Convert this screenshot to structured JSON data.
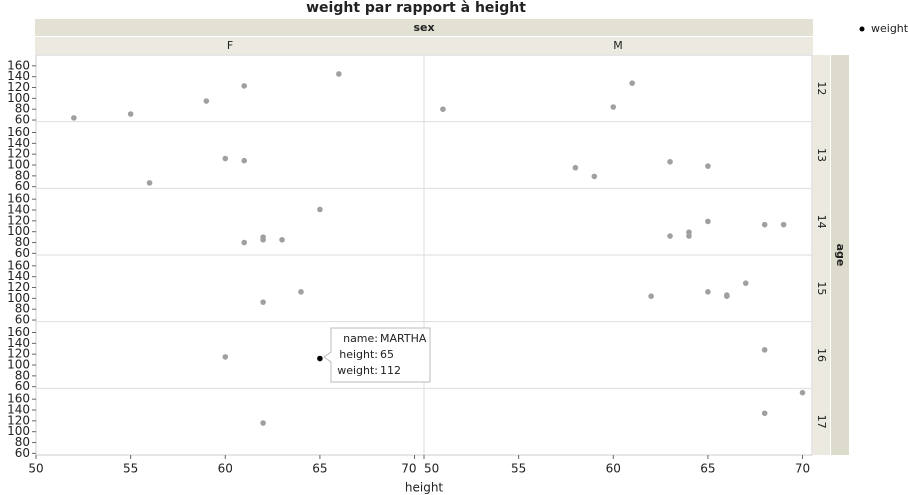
{
  "chart_data": {
    "type": "scatter",
    "title": "weight par rapport à height",
    "x_label": "height",
    "column_facet": "sex",
    "columns": [
      "F",
      "M"
    ],
    "row_facet": "age",
    "rows": [
      "12",
      "13",
      "14",
      "15",
      "16",
      "17"
    ],
    "legend": "weight",
    "color": "#a0a0a0",
    "highlight_color": "#000000",
    "xlim": [
      50,
      70.5
    ],
    "xticks": [
      50,
      55,
      60,
      65,
      70
    ],
    "ylim": [
      57,
      180
    ],
    "yticks": [
      60,
      80,
      100,
      120,
      140,
      160
    ],
    "panels": [
      [
        {
          "x": [
            52,
            55,
            59,
            61,
            66
          ],
          "values": [
            64,
            71,
            95,
            123,
            145
          ]
        },
        {
          "x": [
            51,
            60,
            61
          ],
          "values": [
            80,
            84,
            128
          ]
        }
      ],
      [
        {
          "x": [
            60,
            61,
            56
          ],
          "values": [
            112,
            108,
            67
          ]
        },
        {
          "x": [
            58,
            59,
            63,
            65
          ],
          "values": [
            95,
            79,
            106,
            98
          ]
        }
      ],
      [
        {
          "x": [
            65,
            61,
            62,
            62,
            63
          ],
          "values": [
            141,
            80,
            90,
            85,
            85
          ]
        },
        {
          "x": [
            63,
            64,
            64,
            65,
            68,
            69
          ],
          "values": [
            92,
            99,
            92,
            119,
            113,
            113
          ]
        }
      ],
      [
        {
          "x": [
            62,
            64
          ],
          "values": [
            93,
            112
          ]
        },
        {
          "x": [
            62,
            65,
            66,
            66,
            67
          ],
          "values": [
            104,
            112,
            106,
            104,
            128
          ]
        }
      ],
      [
        {
          "x": [
            60,
            65
          ],
          "values": [
            115,
            112
          ]
        },
        {
          "x": [
            68
          ],
          "values": [
            128
          ]
        }
      ],
      [
        {
          "x": [
            62
          ],
          "values": [
            116
          ]
        },
        {
          "x": [
            70,
            68
          ],
          "values": [
            172,
            134
          ]
        }
      ]
    ],
    "tooltip": [
      {
        "label": "name:",
        "value": "MARTHA"
      },
      {
        "label": "height:",
        "value": 65
      },
      {
        "label": "weight:",
        "value": 112
      }
    ]
  }
}
